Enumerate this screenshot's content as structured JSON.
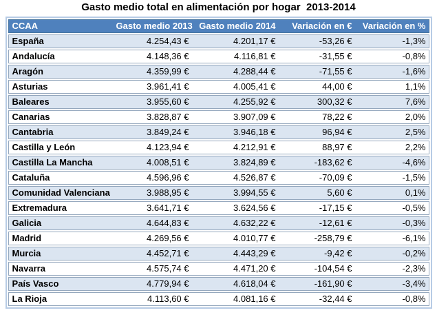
{
  "title": "Gasto medio total en alimentación por hogar  2013-2014",
  "colors": {
    "header_background": "#4F81BD",
    "header_text": "#FFFFFF",
    "banded_row_background": "#DBE5F1",
    "plain_row_background": "#FFFFFF",
    "outer_border": "#B7CBE5",
    "row_border": "#94A7BD",
    "title_text": "#000000"
  },
  "chart_data": {
    "type": "table",
    "title": "Gasto medio total en alimentación por hogar  2013-2014",
    "columns": [
      "CCAA",
      "Gasto medio 2013",
      "Gasto medio 2014",
      "Variación en €",
      "Variación en %"
    ],
    "rows": [
      [
        "España",
        "4.254,43 €",
        "4.201,17 €",
        "-53,26 €",
        "-1,3%"
      ],
      [
        "Andalucía",
        "4.148,36 €",
        "4.116,81 €",
        "-31,55 €",
        "-0,8%"
      ],
      [
        "Aragón",
        "4.359,99 €",
        "4.288,44 €",
        "-71,55 €",
        "-1,6%"
      ],
      [
        "Asturias",
        "3.961,41 €",
        "4.005,41 €",
        "44,00 €",
        "1,1%"
      ],
      [
        "Baleares",
        "3.955,60 €",
        "4.255,92 €",
        "300,32 €",
        "7,6%"
      ],
      [
        "Canarias",
        "3.828,87 €",
        "3.907,09 €",
        "78,22 €",
        "2,0%"
      ],
      [
        "Cantabria",
        "3.849,24 €",
        "3.946,18 €",
        "96,94 €",
        "2,5%"
      ],
      [
        "Castilla y León",
        "4.123,94 €",
        "4.212,91 €",
        "88,97 €",
        "2,2%"
      ],
      [
        "Castilla La Mancha",
        "4.008,51 €",
        "3.824,89 €",
        "-183,62 €",
        "-4,6%"
      ],
      [
        "Cataluña",
        "4.596,96 €",
        "4.526,87 €",
        "-70,09 €",
        "-1,5%"
      ],
      [
        "Comunidad Valenciana",
        "3.988,95 €",
        "3.994,55 €",
        "5,60 €",
        "0,1%"
      ],
      [
        "Extremadura",
        "3.641,71 €",
        "3.624,56 €",
        "-17,15 €",
        "-0,5%"
      ],
      [
        "Galicia",
        "4.644,83 €",
        "4.632,22 €",
        "-12,61 €",
        "-0,3%"
      ],
      [
        "Madrid",
        "4.269,56 €",
        "4.010,77 €",
        "-258,79 €",
        "-6,1%"
      ],
      [
        "Murcia",
        "4.452,71 €",
        "4.443,29 €",
        "-9,42 €",
        "-0,2%"
      ],
      [
        "Navarra",
        "4.575,74 €",
        "4.471,20 €",
        "-104,54 €",
        "-2,3%"
      ],
      [
        "País Vasco",
        "4.779,94 €",
        "4.618,04 €",
        "-161,90 €",
        "-3,4%"
      ],
      [
        "La Rioja",
        "4.113,60 €",
        "4.081,16 €",
        "-32,44 €",
        "-0,8%"
      ]
    ]
  }
}
